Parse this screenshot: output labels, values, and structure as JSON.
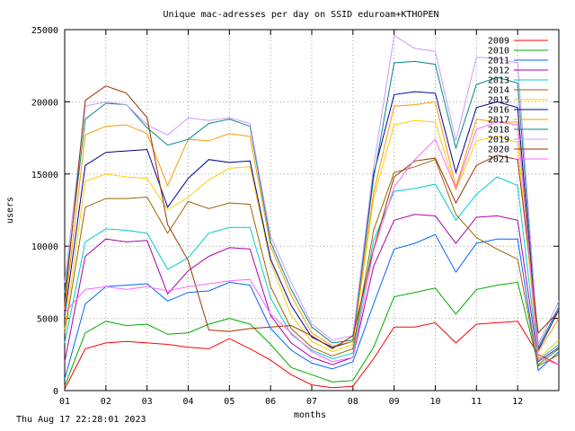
{
  "chart_data": {
    "type": "line",
    "title": "Unique mac-adresses per day on SSID eduroam+KTHOPEN",
    "xlabel": "months",
    "ylabel": "users",
    "timestamp": "Thu Aug 17 22:28:01 2023",
    "ylim": [
      0,
      25000
    ],
    "xlim": [
      1,
      13
    ],
    "yticks": [
      0,
      5000,
      10000,
      15000,
      20000,
      25000
    ],
    "xticks": [
      {
        "label": "01",
        "value": 1
      },
      {
        "label": "02",
        "value": 2
      },
      {
        "label": "03",
        "value": 3
      },
      {
        "label": "04",
        "value": 4
      },
      {
        "label": "05",
        "value": 5
      },
      {
        "label": "06",
        "value": 6
      },
      {
        "label": "07",
        "value": 7
      },
      {
        "label": "08",
        "value": 8
      },
      {
        "label": "09",
        "value": 9
      },
      {
        "label": "10",
        "value": 10
      },
      {
        "label": "11",
        "value": 11
      },
      {
        "label": "12",
        "value": 12
      }
    ],
    "grid": true,
    "legend_position": "top-right",
    "x": [
      1.0,
      1.5,
      2.0,
      2.5,
      3.0,
      3.5,
      4.0,
      4.5,
      5.0,
      5.5,
      6.0,
      6.5,
      7.0,
      7.5,
      8.0,
      8.5,
      9.0,
      9.5,
      10.0,
      10.5,
      11.0,
      11.5,
      12.0,
      12.5,
      13.0
    ],
    "series": [
      {
        "name": "2009",
        "color": "#ff0000",
        "values": [
          100,
          2900,
          3300,
          3400,
          3300,
          3200,
          3000,
          2900,
          3600,
          2900,
          2100,
          1100,
          400,
          200,
          300,
          2200,
          4400,
          4400,
          4700,
          3300,
          4600,
          4700,
          4800,
          2500,
          1800
        ]
      },
      {
        "name": "2010",
        "color": "#00aa00",
        "values": [
          300,
          4000,
          4800,
          4500,
          4600,
          3900,
          4000,
          4600,
          5000,
          4600,
          3200,
          1600,
          1100,
          600,
          700,
          3000,
          6500,
          6800,
          7100,
          5300,
          7000,
          7300,
          7500,
          1800,
          2900
        ]
      },
      {
        "name": "2011",
        "color": "#0066ff",
        "values": [
          800,
          6000,
          7200,
          7300,
          7400,
          6200,
          6800,
          6900,
          7500,
          7300,
          4300,
          2800,
          1900,
          1500,
          2000,
          6000,
          9800,
          10200,
          10800,
          8200,
          10200,
          10500,
          10500,
          1400,
          2700
        ]
      },
      {
        "name": "2012",
        "color": "#aa00aa",
        "values": [
          2000,
          9300,
          10500,
          10300,
          10400,
          6700,
          8300,
          9300,
          9900,
          9800,
          5200,
          3300,
          2300,
          1800,
          2300,
          8600,
          11800,
          12200,
          12100,
          10200,
          12000,
          12100,
          11800,
          2000,
          3000
        ]
      },
      {
        "name": "2013",
        "color": "#00cccc",
        "values": [
          3300,
          10300,
          11200,
          11100,
          10900,
          8400,
          9200,
          10900,
          11300,
          11300,
          6400,
          3900,
          2800,
          2200,
          2600,
          10400,
          13800,
          14000,
          14300,
          11800,
          13600,
          14800,
          14200,
          2100,
          3200
        ]
      },
      {
        "name": "2014",
        "color": "#996600",
        "values": [
          4000,
          12700,
          13300,
          13300,
          13400,
          10900,
          13100,
          12600,
          13000,
          12900,
          7200,
          4300,
          3000,
          2400,
          2900,
          11100,
          15100,
          15500,
          16000,
          12200,
          10600,
          9800,
          9100,
          1700,
          2500
        ]
      },
      {
        "name": "2015",
        "color": "#ffcc00",
        "values": [
          4200,
          14500,
          15000,
          14800,
          14700,
          12500,
          13400,
          14600,
          15400,
          15500,
          8900,
          5200,
          3400,
          2700,
          3200,
          13300,
          18400,
          18700,
          18600,
          13900,
          17300,
          17600,
          17200,
          2200,
          3500
        ]
      },
      {
        "name": "2016",
        "color": "#000099",
        "values": [
          5200,
          15600,
          16500,
          16600,
          16700,
          12700,
          14700,
          16000,
          15800,
          15900,
          9100,
          5900,
          3700,
          3000,
          3400,
          15000,
          20500,
          20700,
          20600,
          15100,
          19600,
          20000,
          19600,
          2800,
          5600
        ]
      },
      {
        "name": "2017",
        "color": "#ff9900",
        "values": [
          5600,
          17700,
          18300,
          18400,
          17800,
          14200,
          17400,
          17300,
          17800,
          17600,
          10000,
          6600,
          4000,
          3100,
          3400,
          13700,
          19700,
          19800,
          20000,
          14100,
          18800,
          18600,
          18600,
          2700,
          5000
        ]
      },
      {
        "name": "2018",
        "color": "#008888",
        "values": [
          6800,
          18800,
          19900,
          19800,
          18200,
          17000,
          17400,
          18500,
          18800,
          18300,
          10300,
          7000,
          4400,
          3300,
          3500,
          14700,
          22700,
          22800,
          22600,
          16800,
          21200,
          21700,
          21300,
          3000,
          5800
        ]
      },
      {
        "name": "2019",
        "color": "#cc99ff",
        "values": [
          7500,
          19700,
          20000,
          19800,
          18400,
          17700,
          18900,
          18700,
          18900,
          18500,
          10700,
          7500,
          4600,
          3500,
          3800,
          15500,
          24600,
          23700,
          23500,
          17300,
          23100,
          23000,
          22700,
          3200,
          6200
        ]
      },
      {
        "name": "2020",
        "color": "#993300",
        "values": [
          6000,
          20100,
          21100,
          20600,
          18900,
          11500,
          9000,
          4200,
          4100,
          4300,
          4400,
          4500,
          3800,
          2900,
          3800,
          9800,
          14800,
          15900,
          16100,
          13000,
          15600,
          16300,
          16000,
          4000,
          5500
        ]
      },
      {
        "name": "2021",
        "color": "#ff66ff",
        "values": [
          5400,
          7000,
          7200,
          7000,
          7200,
          6900,
          7200,
          7400,
          7600,
          7700,
          5300,
          4000,
          2700,
          2000,
          2300,
          9700,
          14100,
          16000,
          17400,
          14000,
          18100,
          18600,
          18400,
          2300,
          1800
        ]
      }
    ]
  }
}
